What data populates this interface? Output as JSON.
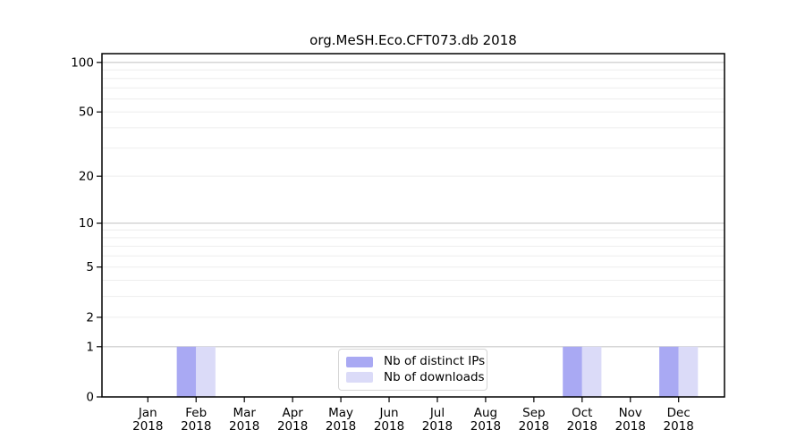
{
  "chart_data": {
    "type": "bar",
    "title": "org.MeSH.Eco.CFT073.db 2018",
    "categories": [
      "Jan 2018",
      "Feb 2018",
      "Mar 2018",
      "Apr 2018",
      "May 2018",
      "Jun 2018",
      "Jul 2018",
      "Aug 2018",
      "Sep 2018",
      "Oct 2018",
      "Nov 2018",
      "Dec 2018"
    ],
    "series": [
      {
        "name": "Nb of distinct IPs",
        "color": "#a9a9f3",
        "values": [
          0,
          1,
          0,
          0,
          0,
          0,
          0,
          0,
          0,
          1,
          0,
          1
        ]
      },
      {
        "name": "Nb of downloads",
        "color": "#dbdbf8",
        "values": [
          0,
          1,
          0,
          0,
          0,
          0,
          0,
          0,
          0,
          1,
          0,
          1
        ]
      }
    ],
    "xlabel": "",
    "ylabel": "",
    "yscale": "log1p",
    "ylim": [
      0,
      113
    ],
    "yticks": [
      0,
      1,
      2,
      5,
      10,
      20,
      50,
      100
    ],
    "grid": {
      "on": true,
      "major_values": [
        1,
        10,
        100
      ],
      "minor_values": [
        2,
        3,
        4,
        5,
        6,
        7,
        8,
        9,
        20,
        30,
        40,
        50,
        60,
        70,
        80,
        90
      ],
      "major_color": "#c9c9c9",
      "minor_color": "#eeeeee"
    },
    "legend": {
      "position": "inside-bottom-center",
      "border_color": "#d5d5d5",
      "labels": [
        "Nb of distinct IPs",
        "Nb of downloads"
      ]
    },
    "axis_color": "#000000"
  }
}
